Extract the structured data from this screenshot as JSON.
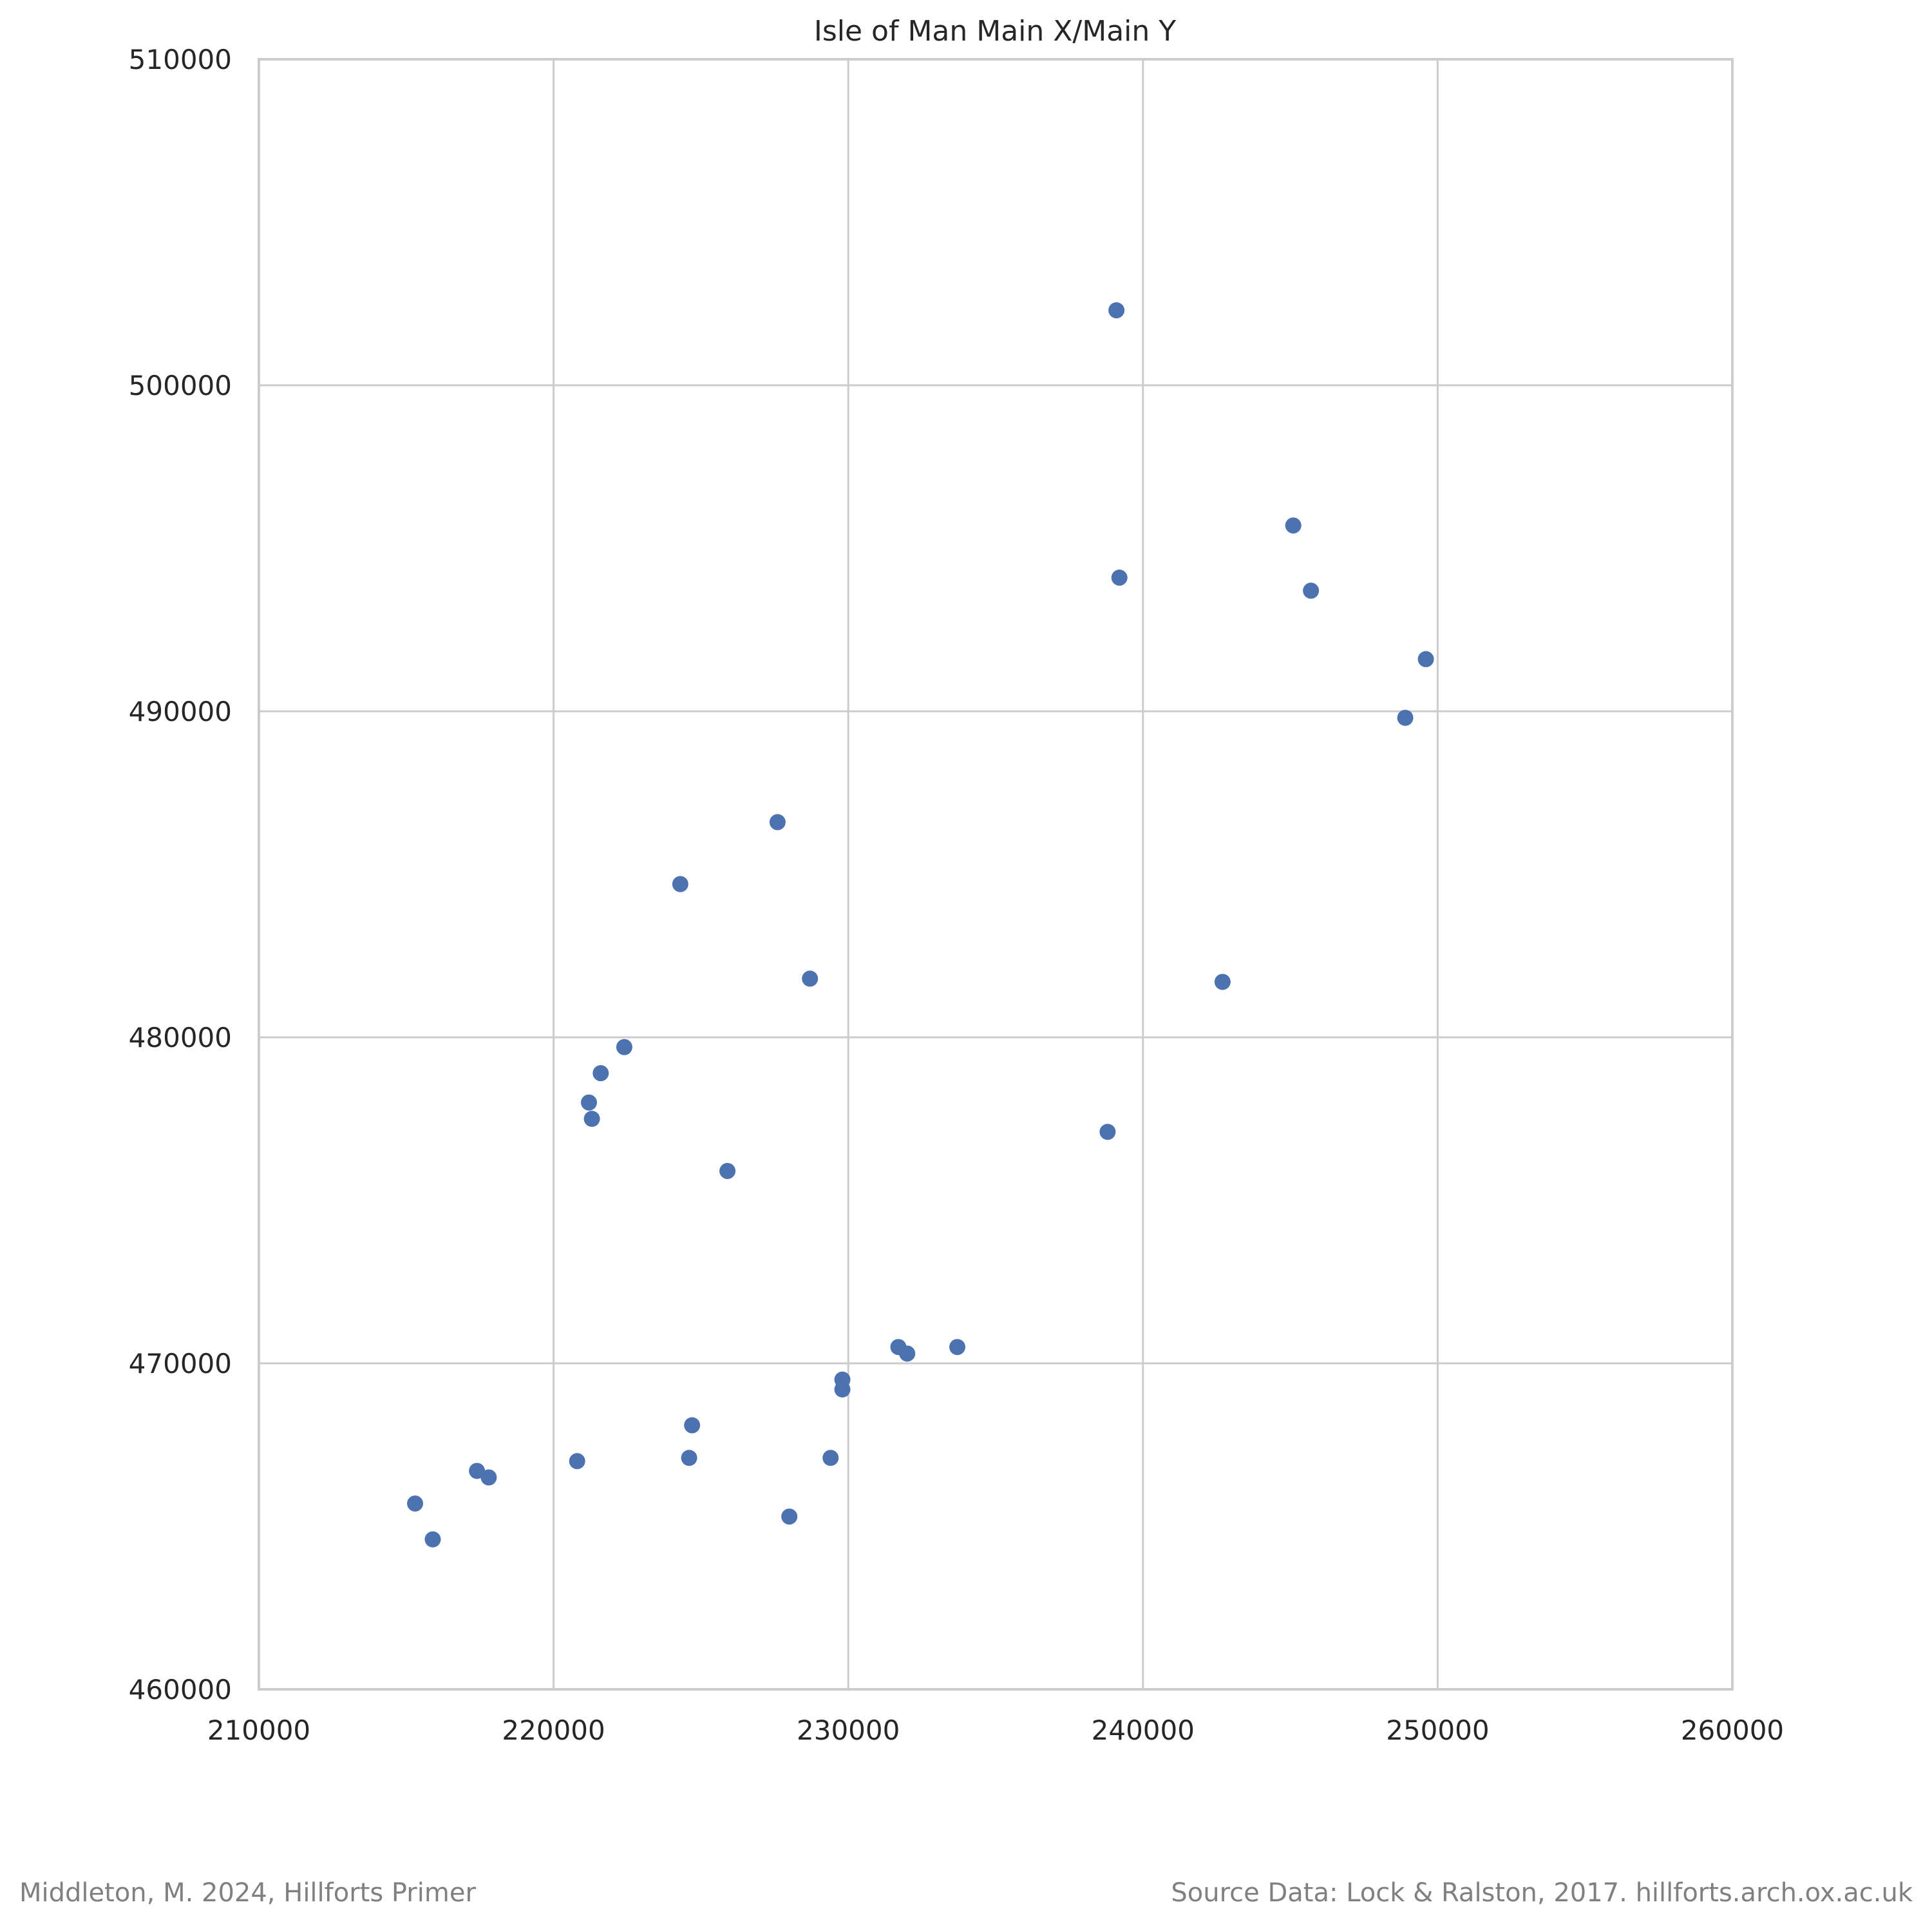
{
  "chart_data": {
    "type": "scatter",
    "title": "Isle of Man Main X/Main Y",
    "xlabel": "",
    "ylabel": "",
    "xlim": [
      210000,
      260000
    ],
    "ylim": [
      460000,
      510000
    ],
    "xticks": [
      210000,
      220000,
      230000,
      240000,
      250000,
      260000
    ],
    "yticks": [
      460000,
      470000,
      480000,
      490000,
      500000,
      510000
    ],
    "grid": true,
    "legend": "none",
    "marker_color": "#4c72b0",
    "series": [
      {
        "points": [
          {
            "x": 239100,
            "y": 502300
          },
          {
            "x": 245100,
            "y": 495700
          },
          {
            "x": 239200,
            "y": 494100
          },
          {
            "x": 245700,
            "y": 493700
          },
          {
            "x": 249600,
            "y": 491600
          },
          {
            "x": 248900,
            "y": 489800
          },
          {
            "x": 227600,
            "y": 486600
          },
          {
            "x": 224300,
            "y": 484700
          },
          {
            "x": 228700,
            "y": 481800
          },
          {
            "x": 242700,
            "y": 481700
          },
          {
            "x": 222400,
            "y": 479700
          },
          {
            "x": 221600,
            "y": 478900
          },
          {
            "x": 221200,
            "y": 478000
          },
          {
            "x": 221300,
            "y": 477500
          },
          {
            "x": 238800,
            "y": 477100
          },
          {
            "x": 225900,
            "y": 475900
          },
          {
            "x": 231700,
            "y": 470500
          },
          {
            "x": 232000,
            "y": 470300
          },
          {
            "x": 233700,
            "y": 470500
          },
          {
            "x": 229800,
            "y": 469500
          },
          {
            "x": 229800,
            "y": 469200
          },
          {
            "x": 224700,
            "y": 468100
          },
          {
            "x": 220800,
            "y": 467000
          },
          {
            "x": 224600,
            "y": 467100
          },
          {
            "x": 229400,
            "y": 467100
          },
          {
            "x": 217400,
            "y": 466700
          },
          {
            "x": 217800,
            "y": 466500
          },
          {
            "x": 215300,
            "y": 465700
          },
          {
            "x": 228000,
            "y": 465300
          },
          {
            "x": 215900,
            "y": 464600
          }
        ]
      }
    ]
  },
  "footer": {
    "left_credit": "Middleton, M. 2024, Hillforts Primer",
    "right_credit": "Source Data: Lock & Ralston, 2017. hillforts.arch.ox.ac.uk"
  }
}
